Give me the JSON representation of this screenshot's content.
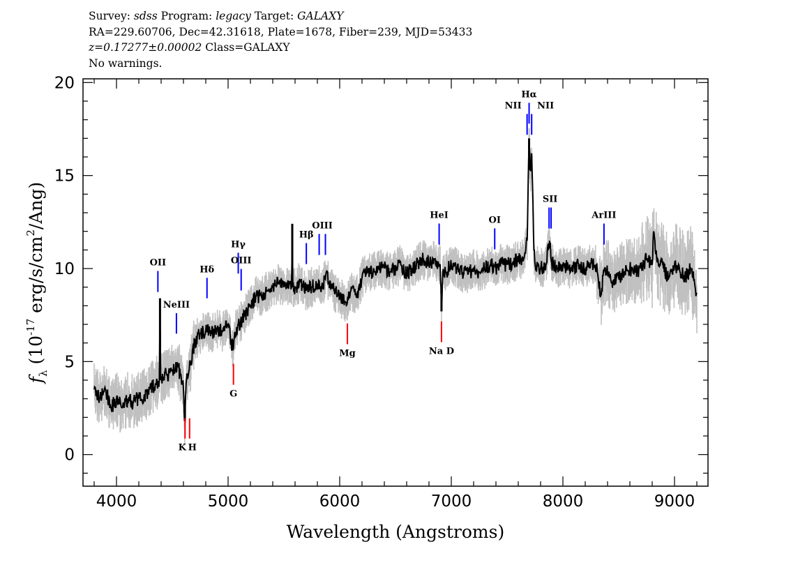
{
  "header": {
    "survey_label": "Survey:",
    "survey": "sdss",
    "program_label": "Program:",
    "program": "legacy",
    "target_label": "Target:",
    "target": "GALAXY",
    "line2": "RA=229.60706, Dec=42.31618, Plate=1678, Fiber=239, MJD=53433",
    "redshift": "z=0.17277±0.00002",
    "class": "Class=GALAXY",
    "warnings": "No warnings."
  },
  "chart_data": {
    "type": "line",
    "title": "",
    "xlabel": "Wavelength (Angstroms)",
    "ylabel": {
      "f": "f",
      "sub": "λ",
      "pre": " (10",
      "exp": "-17",
      "mid": " erg/s/cm",
      "exp2": "2",
      "post": "/Ang)"
    },
    "xlim": [
      3700,
      9300
    ],
    "ylim": [
      -1.7,
      20.2
    ],
    "xticks": [
      4000,
      5000,
      6000,
      7000,
      8000,
      9000
    ],
    "yticks": [
      0,
      5,
      10,
      15,
      20
    ],
    "grid": false,
    "colors": {
      "flux": "#000000",
      "raw": "#c0c0c0",
      "emission": "#0000ff",
      "absorption": "#ff0000"
    },
    "series": [
      {
        "x": [
          3800,
          3850,
          3900,
          3950,
          4000,
          4050,
          4100,
          4150,
          4200,
          4250,
          4300,
          4350,
          4385,
          4390,
          4395,
          4400,
          4450,
          4500,
          4550,
          4600,
          4612,
          4625,
          4650,
          4700,
          4750,
          4800,
          4850,
          4900,
          4950,
          5000,
          5044,
          5060,
          5100,
          5150,
          5200,
          5250,
          5300,
          5350,
          5400,
          5450,
          5500,
          5570,
          5575,
          5580,
          5600,
          5650,
          5700,
          5750,
          5800,
          5850,
          5880,
          5900,
          5950,
          6000,
          6062,
          6100,
          6150,
          6200,
          6250,
          6300,
          6350,
          6400,
          6450,
          6500,
          6550,
          6600,
          6650,
          6700,
          6750,
          6800,
          6850,
          6900,
          6912,
          6925,
          6950,
          7000,
          7050,
          7100,
          7150,
          7200,
          7250,
          7300,
          7350,
          7400,
          7450,
          7500,
          7550,
          7600,
          7650,
          7680,
          7690,
          7697,
          7710,
          7720,
          7740,
          7750,
          7800,
          7850,
          7880,
          7900,
          7950,
          8000,
          8050,
          8100,
          8150,
          8200,
          8250,
          8300,
          8343,
          8360,
          8400,
          8450,
          8500,
          8550,
          8600,
          8650,
          8700,
          8750,
          8800,
          8812,
          8830,
          8850,
          8900,
          8950,
          9000,
          9050,
          9100,
          9150,
          9200
        ],
        "y": [
          3.5,
          3.0,
          3.5,
          2.5,
          3.0,
          2.5,
          3.0,
          2.8,
          3.0,
          3.2,
          3.5,
          3.8,
          4.0,
          8.4,
          4.0,
          4.2,
          4.3,
          4.5,
          4.8,
          3.5,
          1.8,
          4.0,
          4.5,
          6.0,
          6.5,
          6.7,
          6.5,
          6.8,
          6.6,
          7.0,
          5.6,
          6.6,
          7.0,
          7.5,
          8.0,
          8.5,
          8.5,
          8.8,
          9.0,
          9.2,
          9.0,
          9.0,
          12.4,
          9.0,
          9.0,
          9.3,
          8.8,
          9.0,
          9.2,
          9.0,
          9.8,
          9.2,
          8.8,
          8.5,
          8.0,
          8.8,
          8.5,
          9.5,
          9.8,
          9.8,
          10.0,
          10.0,
          9.8,
          10.0,
          10.2,
          9.7,
          10.0,
          10.3,
          10.5,
          10.3,
          10.5,
          10.2,
          7.7,
          10.0,
          9.8,
          10.2,
          10.0,
          9.8,
          9.7,
          10.0,
          9.8,
          10.0,
          10.2,
          10.0,
          10.3,
          10.2,
          10.3,
          10.5,
          10.5,
          11.5,
          15.0,
          17.0,
          15.0,
          16.2,
          11.0,
          10.2,
          10.0,
          10.2,
          11.5,
          10.3,
          10.0,
          10.2,
          10.0,
          10.1,
          10.2,
          10.0,
          10.3,
          10.2,
          8.5,
          9.6,
          9.8,
          9.3,
          9.5,
          9.8,
          10.0,
          9.8,
          10.0,
          10.5,
          10.2,
          12.0,
          10.8,
          10.5,
          10.0,
          9.5,
          10.2,
          9.8,
          9.6,
          10.0,
          8.7
        ]
      }
    ],
    "lines": [
      {
        "label": "OII",
        "wavelength": 4371,
        "type": "emission",
        "top": 9.87,
        "bottom": 8.74
      },
      {
        "label": "NeIII",
        "wavelength": 4537,
        "type": "emission",
        "top": 7.6,
        "bottom": 6.5
      },
      {
        "label": "Hδ",
        "wavelength": 4811,
        "type": "emission",
        "top": 9.5,
        "bottom": 8.4
      },
      {
        "label": "Hγ",
        "wavelength": 5091,
        "type": "emission",
        "top": 10.85,
        "bottom": 9.73
      },
      {
        "label": "OIII",
        "wavelength": 5117,
        "type": "emission",
        "top": 9.98,
        "bottom": 8.82
      },
      {
        "label": "Hβ",
        "wavelength": 5701,
        "type": "emission",
        "top": 11.37,
        "bottom": 10.24
      },
      {
        "label": "OIII",
        "wavelength": 5816,
        "type": "emission",
        "top": 11.86,
        "bottom": 10.73,
        "hide_label": true
      },
      {
        "label": "OIII",
        "wavelength": 5872,
        "type": "emission",
        "top": 11.86,
        "bottom": 10.73,
        "label_at": 5844
      },
      {
        "label": "HeI",
        "wavelength": 6891,
        "type": "emission",
        "top": 12.42,
        "bottom": 11.29
      },
      {
        "label": "OI",
        "wavelength": 7389,
        "type": "emission",
        "top": 12.16,
        "bottom": 11.03
      },
      {
        "label": "NII",
        "wavelength": 7679,
        "type": "emission",
        "top": 18.31,
        "bottom": 17.19,
        "label_dx": -20
      },
      {
        "label": "Hα",
        "wavelength": 7697,
        "type": "emission",
        "top": 18.91,
        "bottom": 17.79
      },
      {
        "label": "NII",
        "wavelength": 7720,
        "type": "emission",
        "top": 18.31,
        "bottom": 17.19,
        "label_dx": 20
      },
      {
        "label": "SII",
        "wavelength": 7876,
        "type": "emission",
        "top": 13.28,
        "bottom": 12.15,
        "hide_label": true
      },
      {
        "label": "SII",
        "wavelength": 7894,
        "type": "emission",
        "top": 13.28,
        "bottom": 12.15,
        "label_at": 7885
      },
      {
        "label": "ArIII",
        "wavelength": 8368,
        "type": "emission",
        "top": 12.42,
        "bottom": 11.29
      },
      {
        "label": "K",
        "wavelength": 4614,
        "type": "absorption",
        "top": 1.95,
        "bottom": 0.86,
        "label_dx": -4
      },
      {
        "label": "H",
        "wavelength": 4655,
        "type": "absorption",
        "top": 1.95,
        "bottom": 0.86,
        "label_dx": 4
      },
      {
        "label": "G",
        "wavelength": 5048,
        "type": "absorption",
        "top": 4.88,
        "bottom": 3.75
      },
      {
        "label": "Mg",
        "wavelength": 6069,
        "type": "absorption",
        "top": 7.05,
        "bottom": 5.93
      },
      {
        "label": "Na D",
        "wavelength": 6912,
        "type": "absorption",
        "top": 7.16,
        "bottom": 6.04
      }
    ]
  }
}
